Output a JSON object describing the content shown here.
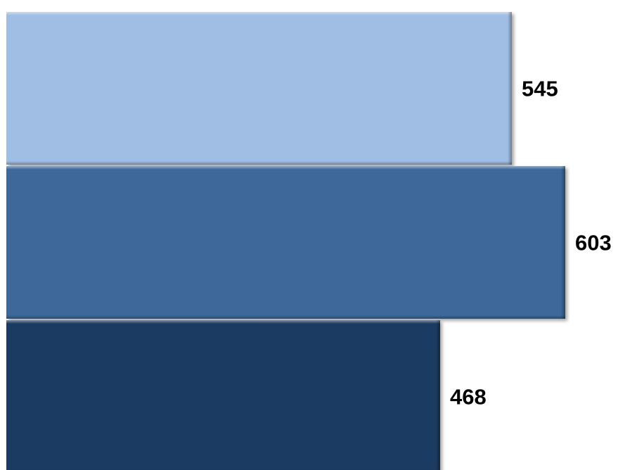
{
  "chart_data": {
    "type": "bar",
    "orientation": "horizontal",
    "values": [
      545,
      603,
      468
    ],
    "data_labels": [
      "545",
      "603",
      "468"
    ],
    "colors": [
      "#a0bee3",
      "#3d6899",
      "#1d3a63"
    ],
    "xlim": [
      0,
      603
    ],
    "grid": false,
    "legend": "none"
  }
}
